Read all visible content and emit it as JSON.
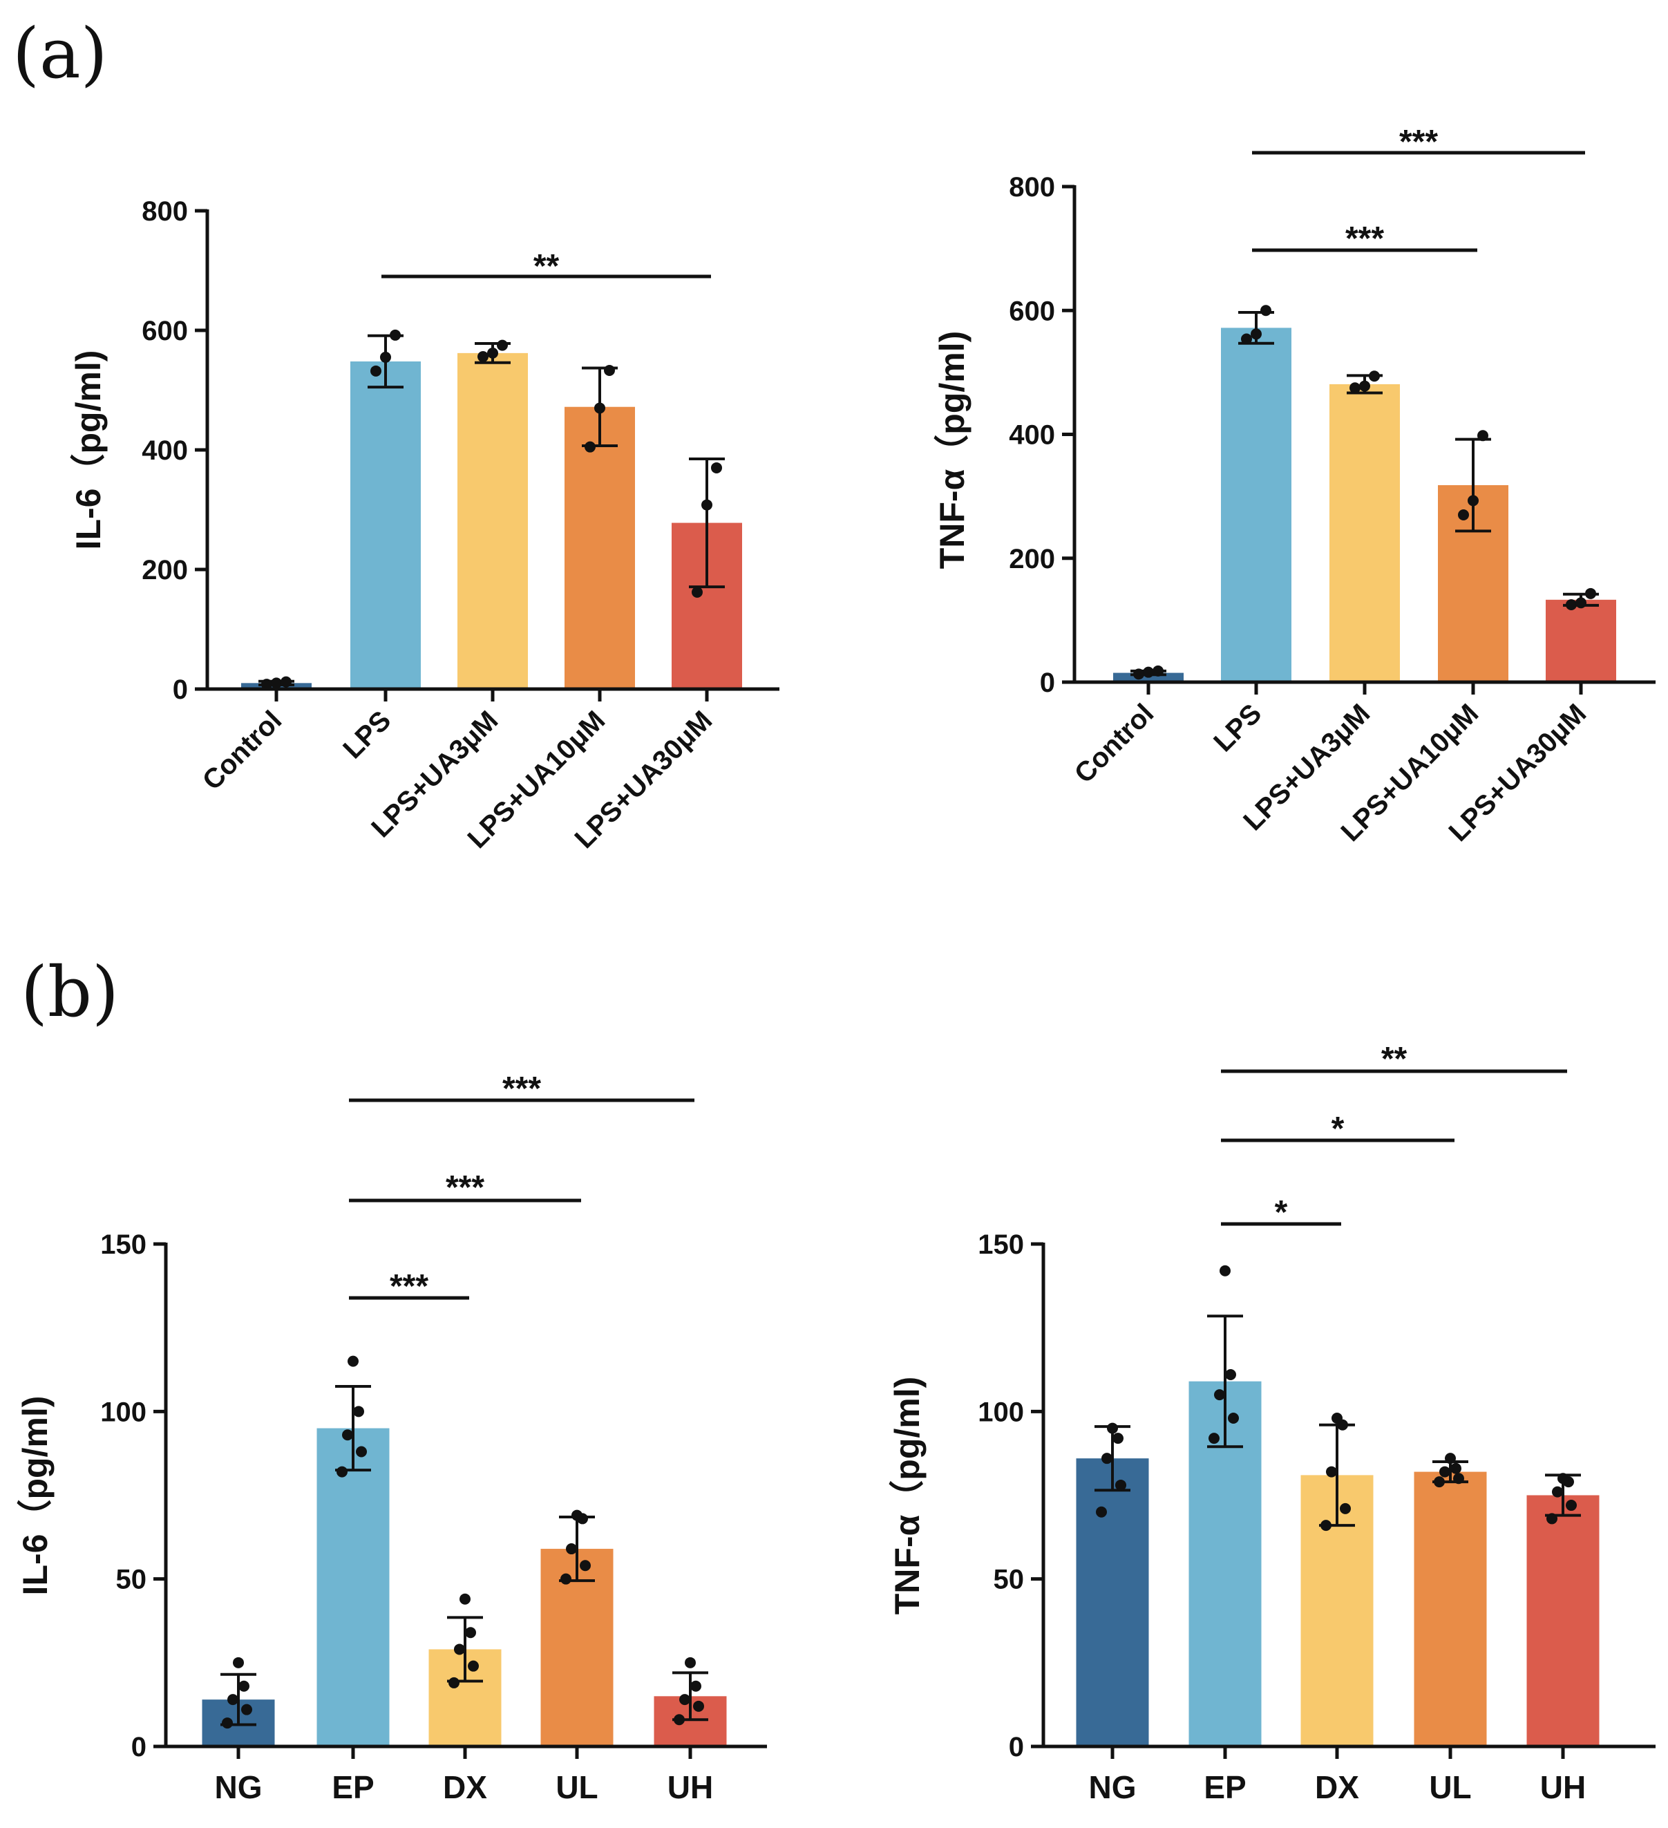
{
  "figure": {
    "panels": [
      {
        "label": "(a)"
      },
      {
        "label": "(b)"
      }
    ]
  },
  "colors": {
    "navy": "#386A96",
    "blue": "#70B5D1",
    "yellow": "#F8C96D",
    "orange": "#E98C47",
    "red": "#DB5C4C",
    "axis": "#111111"
  },
  "chart_data": [
    {
      "type": "bar",
      "panel": "(a)",
      "title": "",
      "ylabel": "IL-6（pg/ml)",
      "xlabel": "",
      "ylim": [
        0,
        800
      ],
      "yticks": [
        0,
        200,
        400,
        600,
        800
      ],
      "categories": [
        "Control",
        "LPS",
        "LPS+UA3μM",
        "LPS+UA10μM",
        "LPS+UA30μM"
      ],
      "values": [
        10,
        548,
        562,
        472,
        278
      ],
      "errors": [
        3,
        43,
        16,
        65,
        107
      ],
      "points": [
        [
          8,
          10,
          12
        ],
        [
          532,
          555,
          592
        ],
        [
          556,
          562,
          575
        ],
        [
          405,
          470,
          533
        ],
        [
          162,
          308,
          370
        ]
      ],
      "bar_colors": [
        "navy",
        "blue",
        "yellow",
        "orange",
        "red"
      ],
      "significance": [
        {
          "from": 1,
          "to": 4,
          "label": "**"
        }
      ]
    },
    {
      "type": "bar",
      "panel": "(a)",
      "title": "",
      "ylabel": "TNF-α（pg/ml)",
      "xlabel": "",
      "ylim": [
        0,
        800
      ],
      "yticks": [
        0,
        200,
        400,
        600,
        800
      ],
      "categories": [
        "Control",
        "LPS",
        "LPS+UA3μM",
        "LPS+UA10μM",
        "LPS+UA30μM"
      ],
      "values": [
        15,
        572,
        481,
        318,
        133
      ],
      "errors": [
        3,
        25,
        14,
        74,
        9
      ],
      "points": [
        [
          13,
          16,
          18
        ],
        [
          554,
          562,
          600
        ],
        [
          475,
          478,
          494
        ],
        [
          270,
          293,
          398
        ],
        [
          125,
          128,
          143
        ]
      ],
      "bar_colors": [
        "navy",
        "blue",
        "yellow",
        "orange",
        "red"
      ],
      "significance": [
        {
          "from": 1,
          "to": 3,
          "label": "***"
        },
        {
          "from": 1,
          "to": 4,
          "label": "***"
        }
      ]
    },
    {
      "type": "bar",
      "panel": "(b)",
      "title": "",
      "ylabel": "IL-6（pg/ml)",
      "xlabel": "",
      "ylim": [
        0,
        150
      ],
      "yticks": [
        0,
        50,
        100,
        150
      ],
      "categories": [
        "NG",
        "EP",
        "DX",
        "UL",
        "UH"
      ],
      "values": [
        14,
        95,
        29,
        59,
        15
      ],
      "errors": [
        7.5,
        12.5,
        9.5,
        9.5,
        7
      ],
      "points": [
        [
          7,
          11,
          14,
          18,
          25
        ],
        [
          82,
          88,
          93,
          100,
          115
        ],
        [
          19,
          24,
          29,
          34,
          44
        ],
        [
          50,
          54,
          59,
          68,
          69
        ],
        [
          8,
          12,
          14,
          18,
          25
        ]
      ],
      "bar_colors": [
        "navy",
        "blue",
        "yellow",
        "orange",
        "red"
      ],
      "significance": [
        {
          "from": 1,
          "to": 2,
          "label": "***"
        },
        {
          "from": 1,
          "to": 3,
          "label": "***"
        },
        {
          "from": 1,
          "to": 4,
          "label": "***"
        }
      ]
    },
    {
      "type": "bar",
      "panel": "(b)",
      "title": "",
      "ylabel": "TNF-α（pg/ml)",
      "xlabel": "",
      "ylim": [
        0,
        150
      ],
      "yticks": [
        0,
        50,
        100,
        150
      ],
      "categories": [
        "NG",
        "EP",
        "DX",
        "UL",
        "UH"
      ],
      "values": [
        86,
        109,
        81,
        82,
        75
      ],
      "errors": [
        9.5,
        19.5,
        15,
        3,
        6
      ],
      "points": [
        [
          70,
          78,
          86,
          92,
          95
        ],
        [
          92,
          98,
          105,
          111,
          142
        ],
        [
          66,
          71,
          82,
          96,
          98
        ],
        [
          79,
          80,
          82,
          83,
          86
        ],
        [
          68,
          72,
          76,
          79,
          80
        ]
      ],
      "bar_colors": [
        "navy",
        "blue",
        "yellow",
        "orange",
        "red"
      ],
      "significance": [
        {
          "from": 1,
          "to": 2,
          "label": "*"
        },
        {
          "from": 1,
          "to": 3,
          "label": "*"
        },
        {
          "from": 1,
          "to": 4,
          "label": "**"
        }
      ]
    }
  ]
}
